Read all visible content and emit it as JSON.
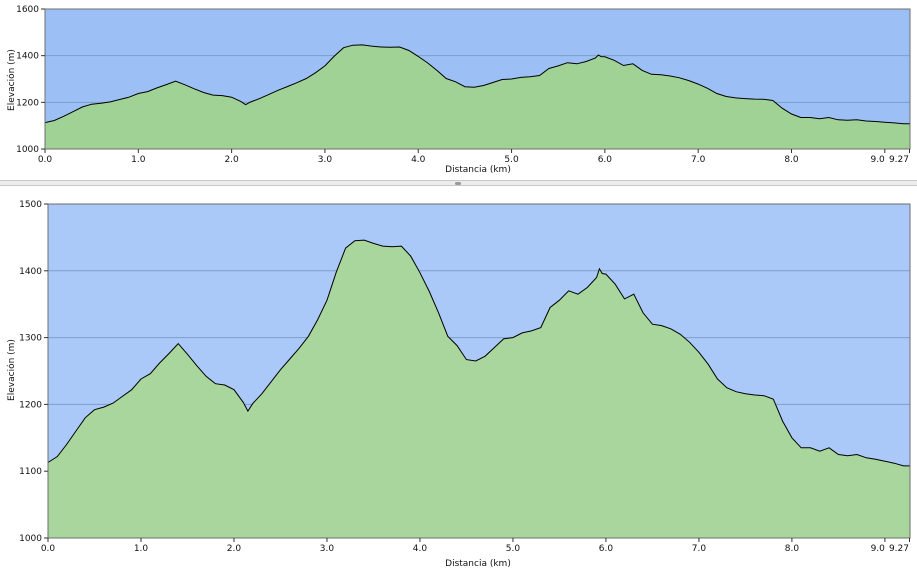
{
  "chart_data": [
    {
      "type": "area",
      "id": "overview",
      "xlabel": "Distancia   (km)",
      "ylabel": "Elevación (m)",
      "xlim": [
        0,
        9.27
      ],
      "ylim": [
        1000,
        1600
      ],
      "xticks": [
        0,
        1,
        2,
        3,
        4,
        5,
        6,
        7,
        8,
        9.0
      ],
      "xtick_labels": [
        "0.0",
        "1.0",
        "2.0",
        "3.0",
        "4.0",
        "5.0",
        "6.0",
        "7.0",
        "8.0",
        "9.0"
      ],
      "xend_label": "9.27",
      "yticks": [
        1000,
        1200,
        1400,
        1600
      ],
      "grid": true,
      "colors": {
        "sky": "#9cc0f5",
        "fill": "#9fd294",
        "line": "#000000",
        "grid": "#7f9ec9"
      }
    },
    {
      "type": "area",
      "id": "detail",
      "xlabel": "Distancia   (km)",
      "ylabel": "Elevación (m)",
      "xlim": [
        0,
        9.27
      ],
      "ylim": [
        1000,
        1500
      ],
      "xticks": [
        0,
        1,
        2,
        3,
        4,
        5,
        6,
        7,
        8,
        9.0
      ],
      "xtick_labels": [
        "0.0",
        "1.0",
        "2.0",
        "3.0",
        "4.0",
        "5.0",
        "6.0",
        "7.0",
        "8.0",
        "9.0"
      ],
      "xend_label": "9.27",
      "yticks": [
        1000,
        1100,
        1200,
        1300,
        1400,
        1500
      ],
      "grid": true,
      "colors": {
        "sky": "#aac8f8",
        "fill": "#a8d69c",
        "line": "#000000",
        "grid": "#7f9ec9"
      }
    }
  ],
  "profile": {
    "x": [
      0,
      0.1,
      0.2,
      0.3,
      0.4,
      0.5,
      0.6,
      0.7,
      0.8,
      0.9,
      1.0,
      1.1,
      1.2,
      1.3,
      1.4,
      1.5,
      1.6,
      1.7,
      1.8,
      1.9,
      2.0,
      2.1,
      2.15,
      2.2,
      2.3,
      2.4,
      2.5,
      2.6,
      2.7,
      2.8,
      2.9,
      3.0,
      3.1,
      3.2,
      3.3,
      3.4,
      3.5,
      3.6,
      3.7,
      3.8,
      3.9,
      4.0,
      4.1,
      4.2,
      4.3,
      4.4,
      4.5,
      4.6,
      4.7,
      4.8,
      4.9,
      5.0,
      5.1,
      5.2,
      5.3,
      5.4,
      5.5,
      5.6,
      5.7,
      5.8,
      5.9,
      5.93,
      5.96,
      6.0,
      6.1,
      6.2,
      6.3,
      6.4,
      6.5,
      6.6,
      6.7,
      6.8,
      6.9,
      7.0,
      7.1,
      7.2,
      7.3,
      7.4,
      7.5,
      7.6,
      7.7,
      7.8,
      7.9,
      8.0,
      8.1,
      8.2,
      8.3,
      8.4,
      8.5,
      8.6,
      8.7,
      8.8,
      8.9,
      9.0,
      9.1,
      9.2,
      9.27
    ],
    "y": [
      1113,
      1122,
      1140,
      1160,
      1180,
      1192,
      1196,
      1202,
      1212,
      1222,
      1238,
      1246,
      1262,
      1276,
      1291,
      1275,
      1258,
      1242,
      1231,
      1229,
      1222,
      1203,
      1190,
      1201,
      1216,
      1234,
      1252,
      1268,
      1284,
      1302,
      1327,
      1356,
      1398,
      1434,
      1445,
      1446,
      1441,
      1437,
      1436,
      1437,
      1422,
      1397,
      1369,
      1337,
      1302,
      1288,
      1267,
      1265,
      1272,
      1285,
      1298,
      1300,
      1307,
      1310,
      1315,
      1345,
      1356,
      1370,
      1365,
      1375,
      1390,
      1403,
      1396,
      1395,
      1380,
      1358,
      1365,
      1337,
      1320,
      1318,
      1313,
      1305,
      1293,
      1278,
      1260,
      1238,
      1225,
      1219,
      1216,
      1214,
      1213,
      1208,
      1175,
      1150,
      1135,
      1135,
      1130,
      1135,
      1125,
      1123,
      1125,
      1120,
      1118,
      1115,
      1112,
      1108,
      1108
    ]
  }
}
